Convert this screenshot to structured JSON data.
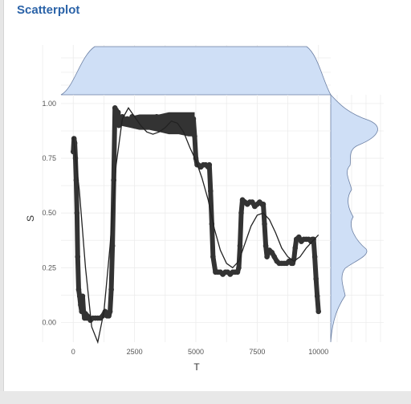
{
  "page": {
    "title": "Scatterplot"
  },
  "chart_data": {
    "type": "scatter",
    "title": "",
    "xlabel": "T",
    "ylabel": "S",
    "xlim": [
      -500,
      10500
    ],
    "ylim": [
      -0.09,
      1.04
    ],
    "x_ticks": [
      0,
      2500,
      5000,
      7500,
      10000
    ],
    "x_tick_labels": [
      "0",
      "2500",
      "5000",
      "7500",
      "10000"
    ],
    "y_ticks": [
      0.0,
      0.25,
      0.5,
      0.75,
      1.0
    ],
    "y_tick_labels": [
      "0.00",
      "0.25",
      "0.50",
      "0.75",
      "1.00"
    ],
    "grid": true,
    "marginal_x": "density (top)",
    "marginal_y": "density (right)",
    "marginal_color": "#cfdff6",
    "point_color": "#333333",
    "series": [
      {
        "type": "scatter",
        "x": [
          0,
          30,
          60,
          90,
          120,
          150,
          180,
          220,
          260,
          300,
          340,
          380,
          420,
          460,
          500,
          540,
          580,
          620,
          700,
          800,
          900,
          1000,
          1100,
          1200,
          1300,
          1380,
          1450,
          1500,
          1550,
          1600,
          1650,
          1700,
          1750,
          1780,
          1800,
          1830,
          1860,
          1900,
          2000,
          2100,
          2200,
          2300,
          2400,
          2500,
          2600,
          2700,
          2800,
          2900,
          3000,
          3100,
          3200,
          3300,
          3400,
          3500,
          3600,
          3700,
          3800,
          3900,
          4000,
          4100,
          4200,
          4300,
          4400,
          4500,
          4600,
          4700,
          4800,
          4900,
          4950,
          5000,
          5050,
          5100,
          5200,
          5300,
          5400,
          5500,
          5550,
          5600,
          5650,
          5700,
          5800,
          5900,
          6000,
          6100,
          6200,
          6300,
          6400,
          6500,
          6600,
          6700,
          6750,
          6800,
          6850,
          6900,
          7000,
          7100,
          7200,
          7300,
          7400,
          7500,
          7600,
          7700,
          7750,
          7800,
          7850,
          7900,
          8000,
          8100,
          8200,
          8300,
          8400,
          8500,
          8600,
          8700,
          8800,
          8900,
          8950,
          9000,
          9050,
          9100,
          9200,
          9300,
          9400,
          9500,
          9600,
          9700,
          9750,
          9800,
          9850,
          9900,
          9950,
          10000
        ],
        "y": [
          0.78,
          0.84,
          0.82,
          0.75,
          0.65,
          0.5,
          0.3,
          0.15,
          0.12,
          0.08,
          0.05,
          0.12,
          0.05,
          0.02,
          0.04,
          0.02,
          0.03,
          0.02,
          0.01,
          0.02,
          0.02,
          0.02,
          0.02,
          0.03,
          0.05,
          0.03,
          0.03,
          0.05,
          0.15,
          0.35,
          0.65,
          0.98,
          0.97,
          0.95,
          0.93,
          0.96,
          0.9,
          0.93,
          0.94,
          0.92,
          0.93,
          0.91,
          0.94,
          0.92,
          0.93,
          0.91,
          0.92,
          0.93,
          0.9,
          0.93,
          0.91,
          0.92,
          0.94,
          0.9,
          0.92,
          0.93,
          0.91,
          0.92,
          0.94,
          0.9,
          0.93,
          0.91,
          0.92,
          0.93,
          0.91,
          0.92,
          0.9,
          0.93,
          0.85,
          0.75,
          0.72,
          0.72,
          0.71,
          0.72,
          0.72,
          0.71,
          0.72,
          0.6,
          0.45,
          0.3,
          0.23,
          0.23,
          0.23,
          0.22,
          0.23,
          0.23,
          0.22,
          0.23,
          0.23,
          0.23,
          0.25,
          0.35,
          0.5,
          0.56,
          0.55,
          0.54,
          0.55,
          0.55,
          0.53,
          0.54,
          0.55,
          0.54,
          0.54,
          0.45,
          0.35,
          0.3,
          0.33,
          0.32,
          0.3,
          0.28,
          0.27,
          0.27,
          0.27,
          0.27,
          0.28,
          0.27,
          0.27,
          0.29,
          0.34,
          0.38,
          0.39,
          0.37,
          0.38,
          0.38,
          0.38,
          0.37,
          0.38,
          0.38,
          0.3,
          0.2,
          0.12,
          0.05
        ]
      },
      {
        "type": "smooth",
        "x": [
          0,
          250,
          500,
          750,
          1000,
          1250,
          1500,
          1750,
          2000,
          2250,
          2500,
          2750,
          3000,
          3250,
          3500,
          3750,
          4000,
          4250,
          4500,
          4750,
          5000,
          5250,
          5500,
          5750,
          6000,
          6250,
          6500,
          6750,
          7000,
          7250,
          7500,
          7750,
          8000,
          8250,
          8500,
          8750,
          9000,
          9250,
          9500,
          9750,
          10000
        ],
        "y": [
          0.85,
          0.6,
          0.25,
          -0.02,
          -0.09,
          0.05,
          0.35,
          0.72,
          0.93,
          0.98,
          0.94,
          0.9,
          0.87,
          0.86,
          0.87,
          0.89,
          0.92,
          0.91,
          0.87,
          0.8,
          0.74,
          0.66,
          0.56,
          0.43,
          0.33,
          0.27,
          0.25,
          0.28,
          0.36,
          0.44,
          0.49,
          0.5,
          0.47,
          0.41,
          0.34,
          0.3,
          0.28,
          0.3,
          0.34,
          0.37,
          0.4
        ]
      },
      {
        "type": "band",
        "x": [
          1900,
          2300,
          2700,
          3100,
          3500,
          3900,
          4300,
          4700,
          4950
        ],
        "y_low": [
          0.9,
          0.89,
          0.88,
          0.88,
          0.87,
          0.86,
          0.86,
          0.85,
          0.85
        ],
        "y_high": [
          0.94,
          0.94,
          0.95,
          0.95,
          0.95,
          0.96,
          0.96,
          0.96,
          0.96
        ]
      }
    ]
  }
}
